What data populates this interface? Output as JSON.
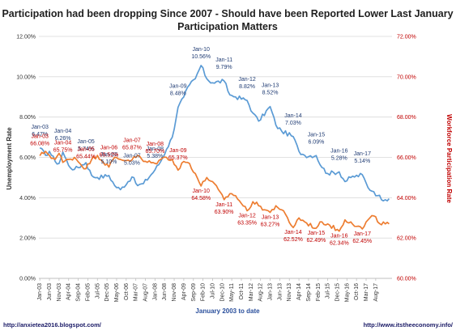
{
  "chart_data": {
    "type": "line",
    "title": "Participation had been dropping Since 2007 - Should have been Reported Lower Last January",
    "subtitle": "Participation Matters",
    "xlabel": "January 2003 to date",
    "ylabel_left": "Unemployment Rate",
    "ylabel_right": "Workforce Participation Rate",
    "y_left_range": [
      0,
      12
    ],
    "y_right_range": [
      60,
      72
    ],
    "y_left_ticks": [
      "0.00%",
      "2.00%",
      "4.00%",
      "6.00%",
      "8.00%",
      "10.00%",
      "12.00%"
    ],
    "y_right_ticks": [
      "60.00%",
      "62.00%",
      "64.00%",
      "66.00%",
      "68.00%",
      "70.00%",
      "72.00%"
    ],
    "x_ticks": [
      "Jan-03",
      "Jun-03",
      "Nov-03",
      "Apr-04",
      "Sep-04",
      "Feb-05",
      "Jul-05",
      "Dec-05",
      "May-06",
      "Oct-06",
      "Mar-07",
      "Aug-07",
      "Jan-08",
      "Jun-08",
      "Nov-08",
      "Apr-09",
      "Sep-09",
      "Feb-10",
      "Jul-10",
      "Dec-10",
      "May-11",
      "Oct-11",
      "Mar-12",
      "Aug-12",
      "Jan-13",
      "Jun-13",
      "Nov-13",
      "Apr-14",
      "Sep-14",
      "Feb-15",
      "Jul-15",
      "Dec-15",
      "May-16",
      "Oct-16",
      "Mar-17",
      "Aug-17"
    ],
    "grid": true,
    "legend": "none",
    "series": [
      {
        "axis": "left",
        "color": "#5b9bd5",
        "anchors": [
          [
            0,
            6.47
          ],
          [
            3,
            6.1
          ],
          [
            5,
            6.3
          ],
          [
            8,
            5.8
          ],
          [
            10,
            5.7
          ],
          [
            12,
            6.26
          ],
          [
            15,
            5.6
          ],
          [
            18,
            5.4
          ],
          [
            24,
            5.74
          ],
          [
            27,
            5.1
          ],
          [
            30,
            5.0
          ],
          [
            36,
            5.1
          ],
          [
            39,
            4.6
          ],
          [
            42,
            4.4
          ],
          [
            48,
            5.03
          ],
          [
            51,
            4.6
          ],
          [
            54,
            4.7
          ],
          [
            60,
            5.38
          ],
          [
            63,
            5.8
          ],
          [
            66,
            6.4
          ],
          [
            69,
            7.0
          ],
          [
            72,
            8.48
          ],
          [
            75,
            9.0
          ],
          [
            78,
            9.6
          ],
          [
            81,
            9.9
          ],
          [
            84,
            10.56
          ],
          [
            87,
            9.9
          ],
          [
            90,
            9.7
          ],
          [
            96,
            9.79
          ],
          [
            99,
            9.1
          ],
          [
            102,
            9.0
          ],
          [
            108,
            8.82
          ],
          [
            111,
            8.2
          ],
          [
            114,
            7.8
          ],
          [
            120,
            8.52
          ],
          [
            123,
            7.6
          ],
          [
            126,
            7.3
          ],
          [
            132,
            7.03
          ],
          [
            135,
            6.3
          ],
          [
            138,
            6.1
          ],
          [
            144,
            6.09
          ],
          [
            147,
            5.5
          ],
          [
            150,
            5.2
          ],
          [
            156,
            5.28
          ],
          [
            159,
            4.8
          ],
          [
            162,
            5.0
          ],
          [
            168,
            5.14
          ],
          [
            171,
            4.5
          ],
          [
            174,
            4.3
          ],
          [
            176,
            4.1
          ],
          [
            180,
            3.9
          ],
          [
            182,
            3.95
          ]
        ],
        "annotations": [
          {
            "label": "Jan-03",
            "value": "6.47%"
          },
          {
            "label": "Jan-04",
            "value": "6.26%"
          },
          {
            "label": "Jan-05",
            "value": "5.74%"
          },
          {
            "label": "Jan-06",
            "value": "5.10%"
          },
          {
            "label": "Jan-07",
            "value": "5.03%"
          },
          {
            "label": "Jan-08",
            "value": "5.38%"
          },
          {
            "label": "Jan-09",
            "value": "8.48%"
          },
          {
            "label": "Jan-10",
            "value": "10.56%"
          },
          {
            "label": "Jan-11",
            "value": "9.79%"
          },
          {
            "label": "Jan-12",
            "value": "8.82%"
          },
          {
            "label": "Jan-13",
            "value": "8.52%"
          },
          {
            "label": "Jan-14",
            "value": "7.03%"
          },
          {
            "label": "Jan-15",
            "value": "6.09%"
          },
          {
            "label": "Jan-16",
            "value": "5.28%"
          },
          {
            "label": "Jan-17",
            "value": "5.14%"
          }
        ]
      },
      {
        "axis": "right",
        "color": "#ed7d31",
        "anchors": [
          [
            0,
            66.08
          ],
          [
            3,
            66.3
          ],
          [
            5,
            66.1
          ],
          [
            8,
            65.9
          ],
          [
            10,
            66.2
          ],
          [
            12,
            65.75
          ],
          [
            15,
            65.9
          ],
          [
            18,
            66.0
          ],
          [
            24,
            65.44
          ],
          [
            27,
            65.9
          ],
          [
            30,
            66.1
          ],
          [
            36,
            65.52
          ],
          [
            39,
            66.0
          ],
          [
            42,
            65.9
          ],
          [
            48,
            65.87
          ],
          [
            51,
            66.1
          ],
          [
            54,
            65.8
          ],
          [
            60,
            65.7
          ],
          [
            63,
            65.9
          ],
          [
            66,
            66.0
          ],
          [
            69,
            65.9
          ],
          [
            72,
            65.37
          ],
          [
            75,
            65.8
          ],
          [
            78,
            65.7
          ],
          [
            81,
            65.2
          ],
          [
            84,
            64.58
          ],
          [
            87,
            65.0
          ],
          [
            90,
            64.8
          ],
          [
            96,
            63.9
          ],
          [
            99,
            64.2
          ],
          [
            102,
            64.1
          ],
          [
            108,
            63.35
          ],
          [
            111,
            63.8
          ],
          [
            114,
            63.6
          ],
          [
            120,
            63.27
          ],
          [
            123,
            63.6
          ],
          [
            126,
            63.4
          ],
          [
            132,
            62.52
          ],
          [
            135,
            63.0
          ],
          [
            138,
            62.8
          ],
          [
            144,
            62.49
          ],
          [
            147,
            62.8
          ],
          [
            150,
            62.7
          ],
          [
            156,
            62.34
          ],
          [
            159,
            62.9
          ],
          [
            162,
            62.8
          ],
          [
            168,
            62.45
          ],
          [
            171,
            62.9
          ],
          [
            174,
            63.1
          ],
          [
            176,
            62.8
          ],
          [
            180,
            62.7
          ],
          [
            182,
            62.7
          ]
        ],
        "annotations": [
          {
            "label": "Jan-03",
            "value": "66.08%"
          },
          {
            "label": "Jan-04",
            "value": "65.75%"
          },
          {
            "label": "Jan-05",
            "value": "65.44%"
          },
          {
            "label": "Jan-06",
            "value": "65.52%"
          },
          {
            "label": "Jan-07",
            "value": "65.87%"
          },
          {
            "label": "Jan-08",
            "value": "65.70%"
          },
          {
            "label": "Jan-09",
            "value": "65.37%"
          },
          {
            "label": "Jan-10",
            "value": "64.58%"
          },
          {
            "label": "Jan-11",
            "value": "63.90%"
          },
          {
            "label": "Jan-12",
            "value": "63.35%"
          },
          {
            "label": "Jan-13",
            "value": "63.27%"
          },
          {
            "label": "Jan-14",
            "value": "62.52%"
          },
          {
            "label": "Jan-15",
            "value": "62.49%"
          },
          {
            "label": "Jan-16",
            "value": "62.34%"
          },
          {
            "label": "Jan-17",
            "value": "62.45%"
          }
        ]
      }
    ]
  },
  "footer": {
    "left": "http://anxietea2016.blogspot.com/",
    "right": "http://www.itstheeconomy.info/"
  }
}
